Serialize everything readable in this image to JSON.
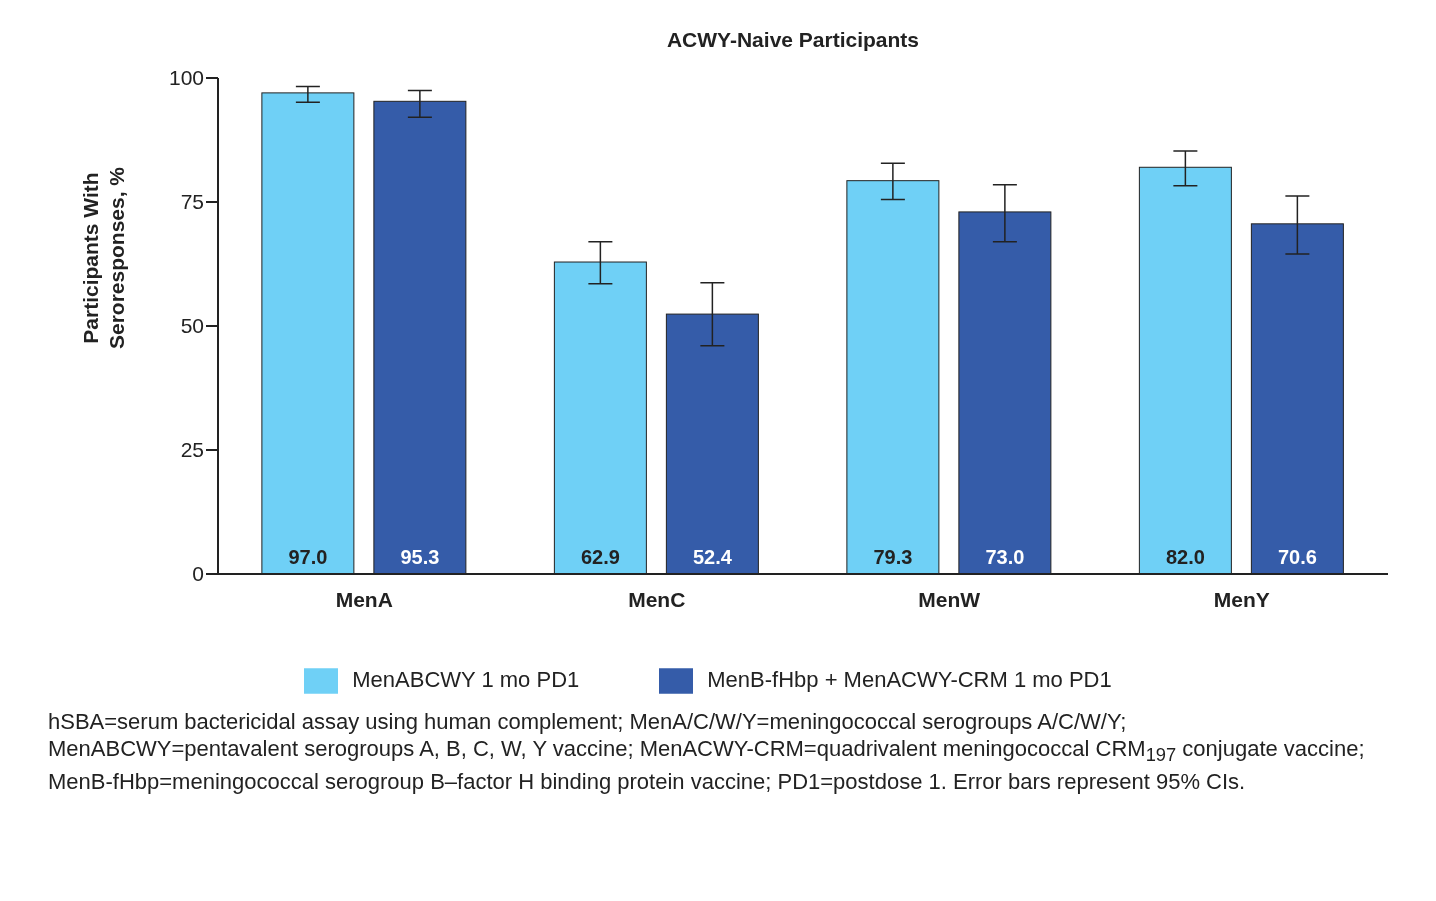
{
  "chart_data": {
    "type": "bar",
    "title": "ACWY-Naive Participants",
    "ylabel": "Participants With Seroresponses, %",
    "categories": [
      "MenA",
      "MenC",
      "MenW",
      "MenY"
    ],
    "series": [
      {
        "name": "MenABCWY 1 mo PD1",
        "color": "#6fd0f6",
        "values": [
          97.0,
          62.9,
          79.3,
          82.0
        ],
        "value_labels": [
          "97.0",
          "62.9",
          "79.3",
          "82.0"
        ],
        "errors": [
          [
            95.1,
            98.3
          ],
          [
            58.5,
            67.0
          ],
          [
            75.5,
            82.8
          ],
          [
            78.3,
            85.3
          ]
        ]
      },
      {
        "name": "MenB-fHbp + MenACWY-CRM 1 mo PD1",
        "color": "#355ca9",
        "values": [
          95.3,
          52.4,
          73.0,
          70.6
        ],
        "value_labels": [
          "95.3",
          "52.4",
          "73.0",
          "70.6"
        ],
        "errors": [
          [
            92.1,
            97.5
          ],
          [
            46.0,
            58.7
          ],
          [
            67.0,
            78.5
          ],
          [
            64.5,
            76.2
          ]
        ]
      }
    ],
    "ylim": [
      0,
      100
    ],
    "yticks": [
      0,
      25,
      50,
      75,
      100
    ],
    "grid": false,
    "legend": "bottom",
    "annotations": [
      "hSBA=serum bactericidal assay using human complement; MenA/C/W/Y=meningococcal serogroups A/C/W/Y; MenABCWY=pentavalent serogroups A, B, C, W, Y vaccine; MenACWY-CRM=quadrivalent meningococcal CRM$_{197}$ conjugate vaccine; MenB-fHbp=meningococcal serogroup B–factor H binding protein vaccine; PD1=postdose 1. Error bars represent 95% CIs."
    ]
  }
}
